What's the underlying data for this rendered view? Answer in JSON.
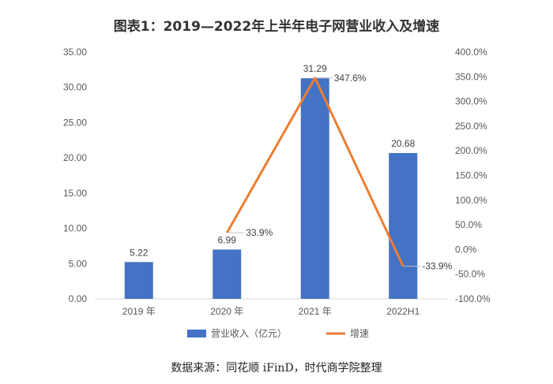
{
  "chart_data": {
    "type": "bar",
    "title": "图表1：2019—2022年上半年电子网营业收入及增速",
    "categories": [
      "2019 年",
      "2020 年",
      "2021 年",
      "2022H1"
    ],
    "series": [
      {
        "name": "营业收入（亿元）",
        "type": "bar",
        "axis": "left",
        "values": [
          5.22,
          6.99,
          31.29,
          20.68
        ],
        "labels": [
          "5.22",
          "6.99",
          "31.29",
          "20.68"
        ],
        "color": "#4472C4"
      },
      {
        "name": "增速",
        "type": "line",
        "axis": "right",
        "values": [
          null,
          33.9,
          347.6,
          -33.9
        ],
        "labels": [
          "",
          "33.9%",
          "347.6%",
          "-33.9%"
        ],
        "color": "#ED7D31"
      }
    ],
    "y_left": {
      "min": 0,
      "max": 35,
      "ticks": [
        0,
        5,
        10,
        15,
        20,
        25,
        30,
        35
      ],
      "tick_labels": [
        "0.00",
        "5.00",
        "10.00",
        "15.00",
        "20.00",
        "25.00",
        "30.00",
        "35.00"
      ]
    },
    "y_right": {
      "min": -100,
      "max": 400,
      "ticks": [
        -100,
        -50,
        0,
        50,
        100,
        150,
        200,
        250,
        300,
        350,
        400
      ],
      "tick_labels": [
        "-100.0%",
        "-50.0%",
        "0.0%",
        "50.0%",
        "100.0%",
        "150.0%",
        "200.0%",
        "250.0%",
        "300.0%",
        "350.0%",
        "400.0%"
      ]
    },
    "grid": false,
    "legend_position": "bottom"
  },
  "source": "数据来源：同花顺 iFinD，时代商学院整理"
}
